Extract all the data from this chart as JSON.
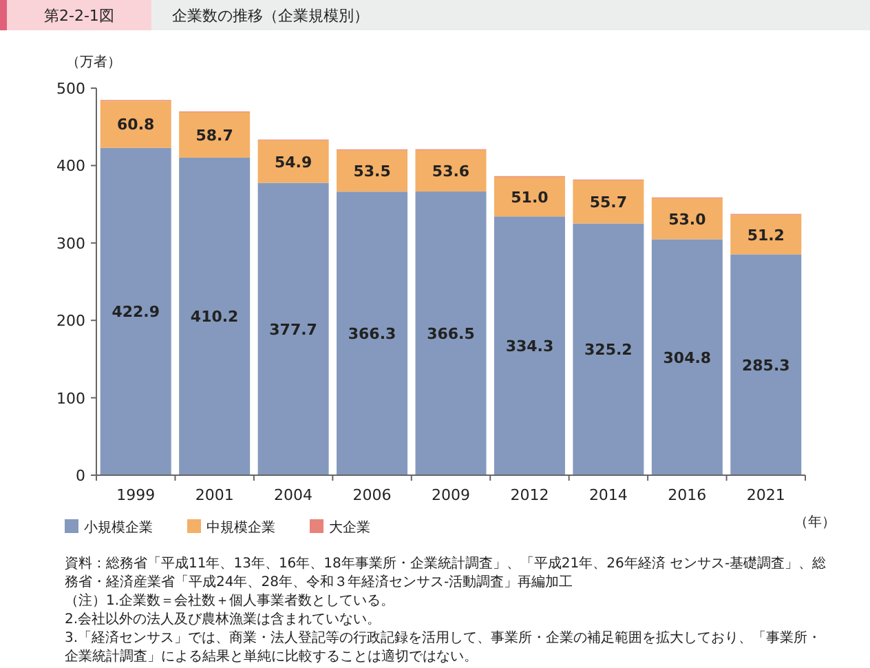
{
  "chart_data": {
    "type": "bar",
    "stacked": true,
    "subtitle": "第2-2-1図",
    "title": "企業数の推移（企業規模別）",
    "ylabel": "（万者）",
    "xlabel": "（年）",
    "categories": [
      "1999",
      "2001",
      "2004",
      "2006",
      "2009",
      "2012",
      "2014",
      "2016",
      "2021"
    ],
    "ylim": [
      0,
      500
    ],
    "yticks": [
      0,
      100,
      200,
      300,
      400,
      500
    ],
    "grid": false,
    "legend": "bottom left",
    "series": [
      {
        "name": "小規模企業",
        "color": "#8499bd",
        "values": [
          422.9,
          410.2,
          377.7,
          366.3,
          366.5,
          334.3,
          325.2,
          304.8,
          285.3
        ],
        "value_labels": [
          "422.9",
          "410.2",
          "377.7",
          "366.3",
          "366.5",
          "334.3",
          "325.2",
          "304.8",
          "285.3"
        ]
      },
      {
        "name": "中規模企業",
        "color": "#f4b066",
        "values": [
          60.8,
          58.7,
          54.9,
          53.5,
          53.6,
          51.0,
          55.7,
          53.0,
          51.2
        ],
        "value_labels": [
          "60.8",
          "58.7",
          "54.9",
          "53.5",
          "53.6",
          "51.0",
          "55.7",
          "53.0",
          "51.2"
        ]
      },
      {
        "name": "大企業",
        "color": "#e8837a",
        "values": [
          1,
          1,
          1,
          1,
          1,
          1,
          1,
          1,
          1
        ]
      }
    ],
    "annotations": [
      "資料：総務省「平成11年、13年、16年、18年事業所・企業統計調査」、「平成21年、26年経済 センサス-基礎調査」、総務省・経済産業省「平成24年、28年、令和３年経済センサス-活動調査」再編加工",
      "（注）1.企業数＝会社数＋個人事業者数としている。",
      "2.会社以外の法人及び農林漁業は含まれていない。",
      "3.「経済センサス」では、商業・法人登記等の行政記録を活用して、事業所・企業の補足範囲を拡大しており、「事業所・企業統計調査」による結果と単純に比較することは適切ではない。"
    ]
  }
}
